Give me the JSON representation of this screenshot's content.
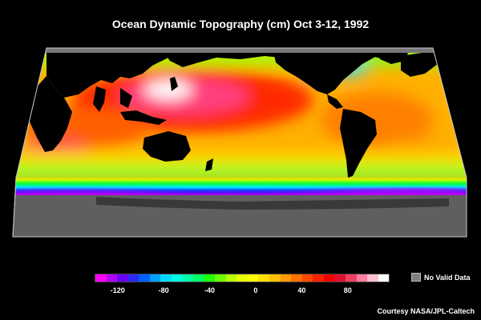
{
  "title": "Ocean Dynamic Topography (cm) Oct 3-12, 1992",
  "legend": {
    "ticks": [
      "-120",
      "-80",
      "-40",
      "0",
      "40",
      "80"
    ],
    "tick_values": [
      -120,
      -80,
      -40,
      0,
      40,
      80
    ],
    "range": [
      -140,
      115
    ],
    "colors": [
      "#ff00ff",
      "#b000ff",
      "#6a00ff",
      "#2a2aff",
      "#0060ff",
      "#00a0ff",
      "#00d8ff",
      "#00ffe0",
      "#00ffa8",
      "#00ff60",
      "#20ff00",
      "#70ff00",
      "#b8ff00",
      "#e8ff00",
      "#ffff00",
      "#ffe000",
      "#ffc000",
      "#ff9a00",
      "#ff7000",
      "#ff4a00",
      "#ff2000",
      "#f00000",
      "#e01030",
      "#f04060",
      "#ff80a0",
      "#ffc0d0",
      "#ffffff"
    ],
    "no_data_label": "No Valid Data",
    "no_data_color": "#808080"
  },
  "credit": "Courtesy NASA/JPL-Caltech"
}
